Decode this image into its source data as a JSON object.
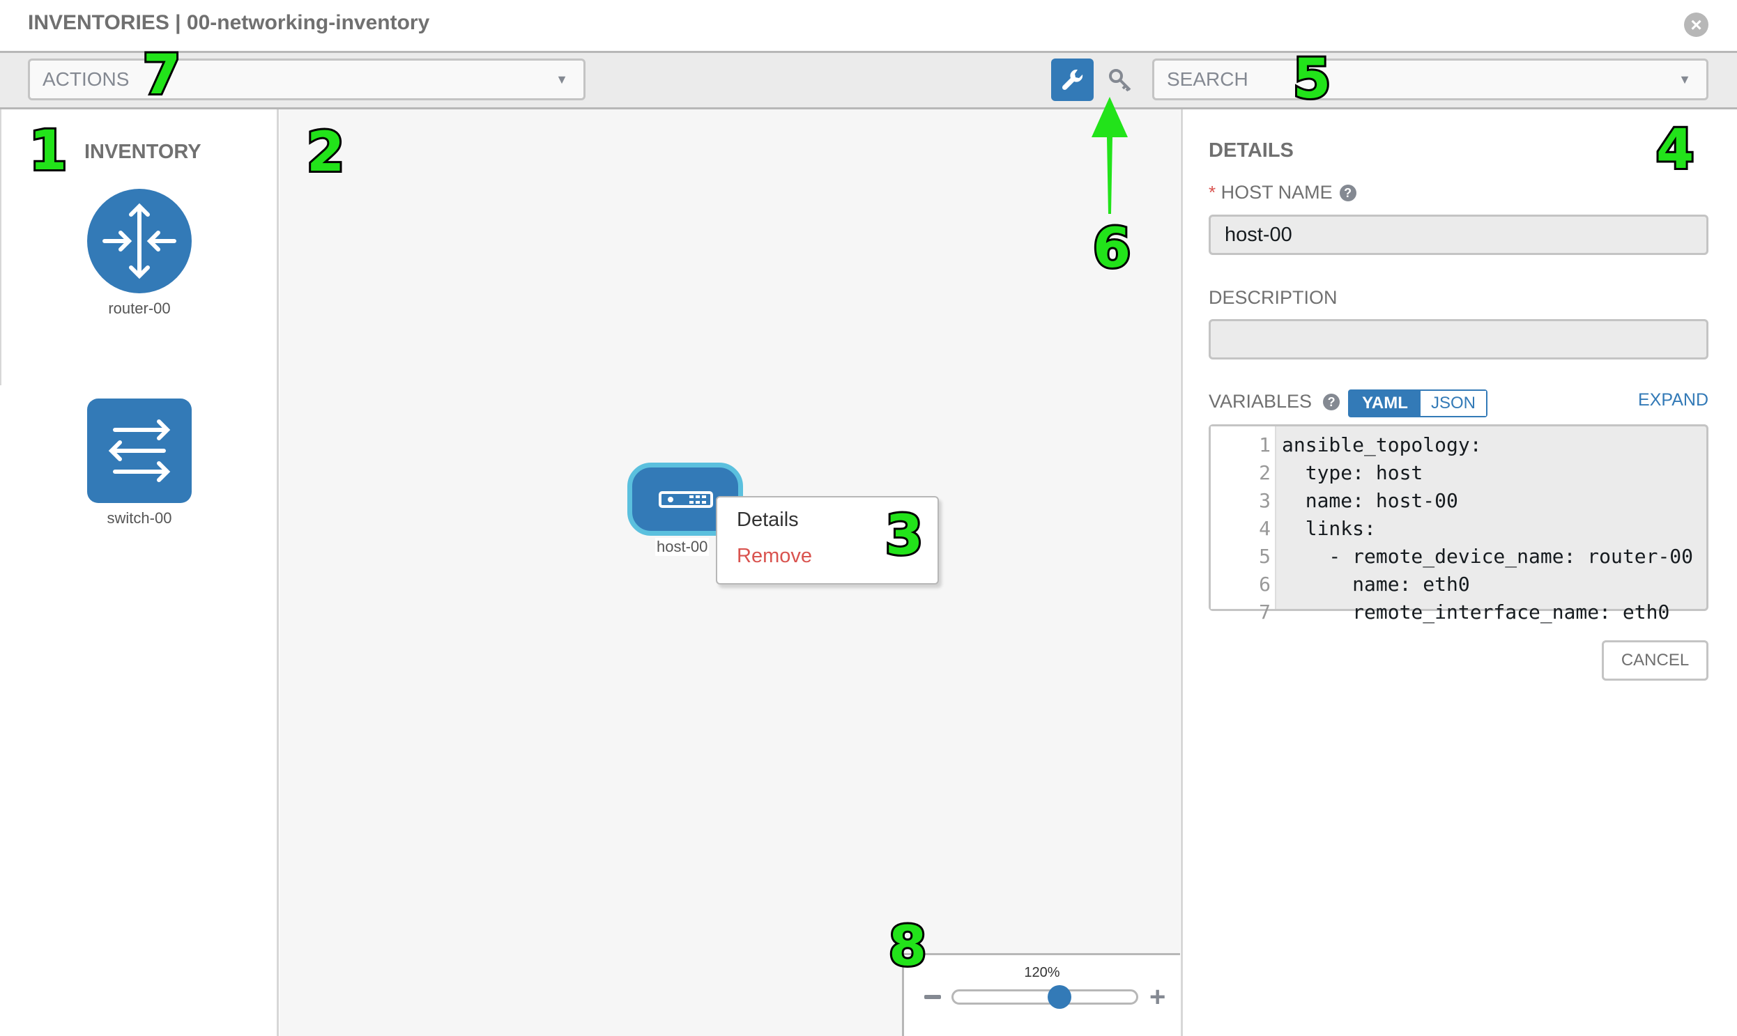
{
  "header": {
    "title": "INVENTORIES | 00-networking-inventory",
    "close_icon": "close-circle-icon"
  },
  "toolbar": {
    "actions_placeholder": "ACTIONS",
    "search_placeholder": "SEARCH",
    "wrench_icon": "wrench-icon",
    "key_icon": "key-icon"
  },
  "sidebar": {
    "title": "INVENTORY",
    "items": [
      {
        "label": "router-00",
        "icon": "router-icon"
      },
      {
        "label": "switch-00",
        "icon": "switch-icon"
      }
    ]
  },
  "canvas": {
    "node": {
      "label": "host-00",
      "icon": "host-icon"
    },
    "context_menu": {
      "details": "Details",
      "remove": "Remove"
    },
    "zoom": {
      "value": "120%",
      "percent": 120
    }
  },
  "details": {
    "title": "DETAILS",
    "host_name_label": "HOST NAME",
    "required_mark": "*",
    "host_name_value": "host-00",
    "description_label": "DESCRIPTION",
    "description_value": "",
    "variables_label": "VARIABLES",
    "yaml": "YAML",
    "json": "JSON",
    "expand": "EXPAND",
    "code_lines": [
      {
        "n": "1",
        "t": "ansible_topology:"
      },
      {
        "n": "2",
        "t": "  type: host"
      },
      {
        "n": "3",
        "t": "  name: host-00"
      },
      {
        "n": "4",
        "t": "  links:"
      },
      {
        "n": "5",
        "t": "    - remote_device_name: router-00"
      },
      {
        "n": "6",
        "t": "      name: eth0"
      },
      {
        "n": "7",
        "t": "      remote_interface_name: eth0"
      }
    ],
    "cancel": "CANCEL"
  },
  "annotations": [
    "1",
    "2",
    "3",
    "4",
    "5",
    "6",
    "7",
    "8"
  ],
  "colors": {
    "primary": "#337ab7",
    "node_highlight": "#5bc0de",
    "danger": "#d9534f",
    "annotation": "#22e31a"
  }
}
